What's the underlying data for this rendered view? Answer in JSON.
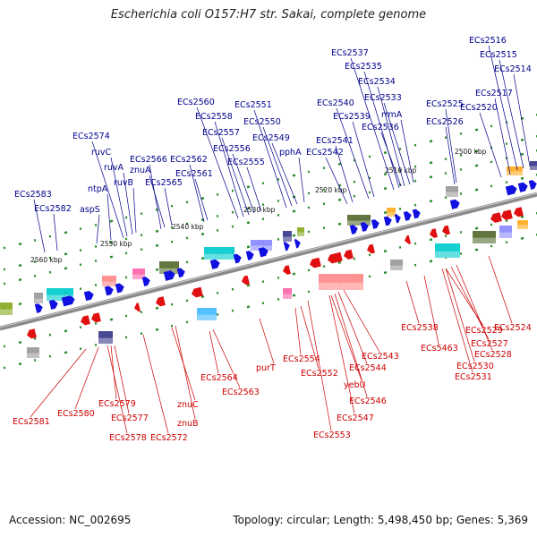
{
  "title": "Escherichia coli O157:H7 str. Sakai, complete genome",
  "accession": "Accession: NC_002695",
  "summary": "Topology: circular; Length: 5,498,450 bp; Genes: 5,369",
  "colors": {
    "forward": "#1010e0",
    "reverse": "#e01010",
    "backbone": "#8a8a8a",
    "dash": "#2a8a2a",
    "forward_label": "#00008b",
    "reverse_label": "#cc0000"
  },
  "scale_ticks": [
    "2500 kbp",
    "2510 kbp",
    "2520 kbp",
    "2530 kbp",
    "2540 kbp",
    "2550 kbp",
    "2560 kbp"
  ],
  "forward_genes": [
    "ECs2516",
    "ECs2515",
    "ECs2514",
    "ECs2537",
    "ECs2535",
    "ECs2534",
    "ECs2533",
    "rrmA",
    "ECs2536",
    "ECs2517",
    "ECs2520",
    "ECs2525",
    "ECs2526",
    "ECs2540",
    "ECs2539",
    "ECs2541",
    "ECs2542",
    "ECs2560",
    "ECs2558",
    "ECs2557",
    "ECs2556",
    "ECs2555",
    "ECs2551",
    "ECs2550",
    "ECs2549",
    "pphA",
    "ECs2574",
    "ruvC",
    "ruvA",
    "ruvB",
    "ECs2566",
    "znuA",
    "ECs2565",
    "ECs2562",
    "ECs2561",
    "ntpA",
    "aspS",
    "ECs2583",
    "ECs2582"
  ],
  "reverse_genes": [
    "ECs2581",
    "ECs2580",
    "ECs2579",
    "ECs2577",
    "ECs2578",
    "ECs2572",
    "znuC",
    "znuB",
    "ECs2564",
    "ECs2563",
    "purT",
    "ECs2554",
    "ECs2552",
    "ECs2553",
    "yebU",
    "ECs2546",
    "ECs2547",
    "ECs2544",
    "ECs2543",
    "ECs2538",
    "ECs5463",
    "ECs2529",
    "ECs2527",
    "ECs2528",
    "ECs2530",
    "ECs2531",
    "ECs2524"
  ]
}
